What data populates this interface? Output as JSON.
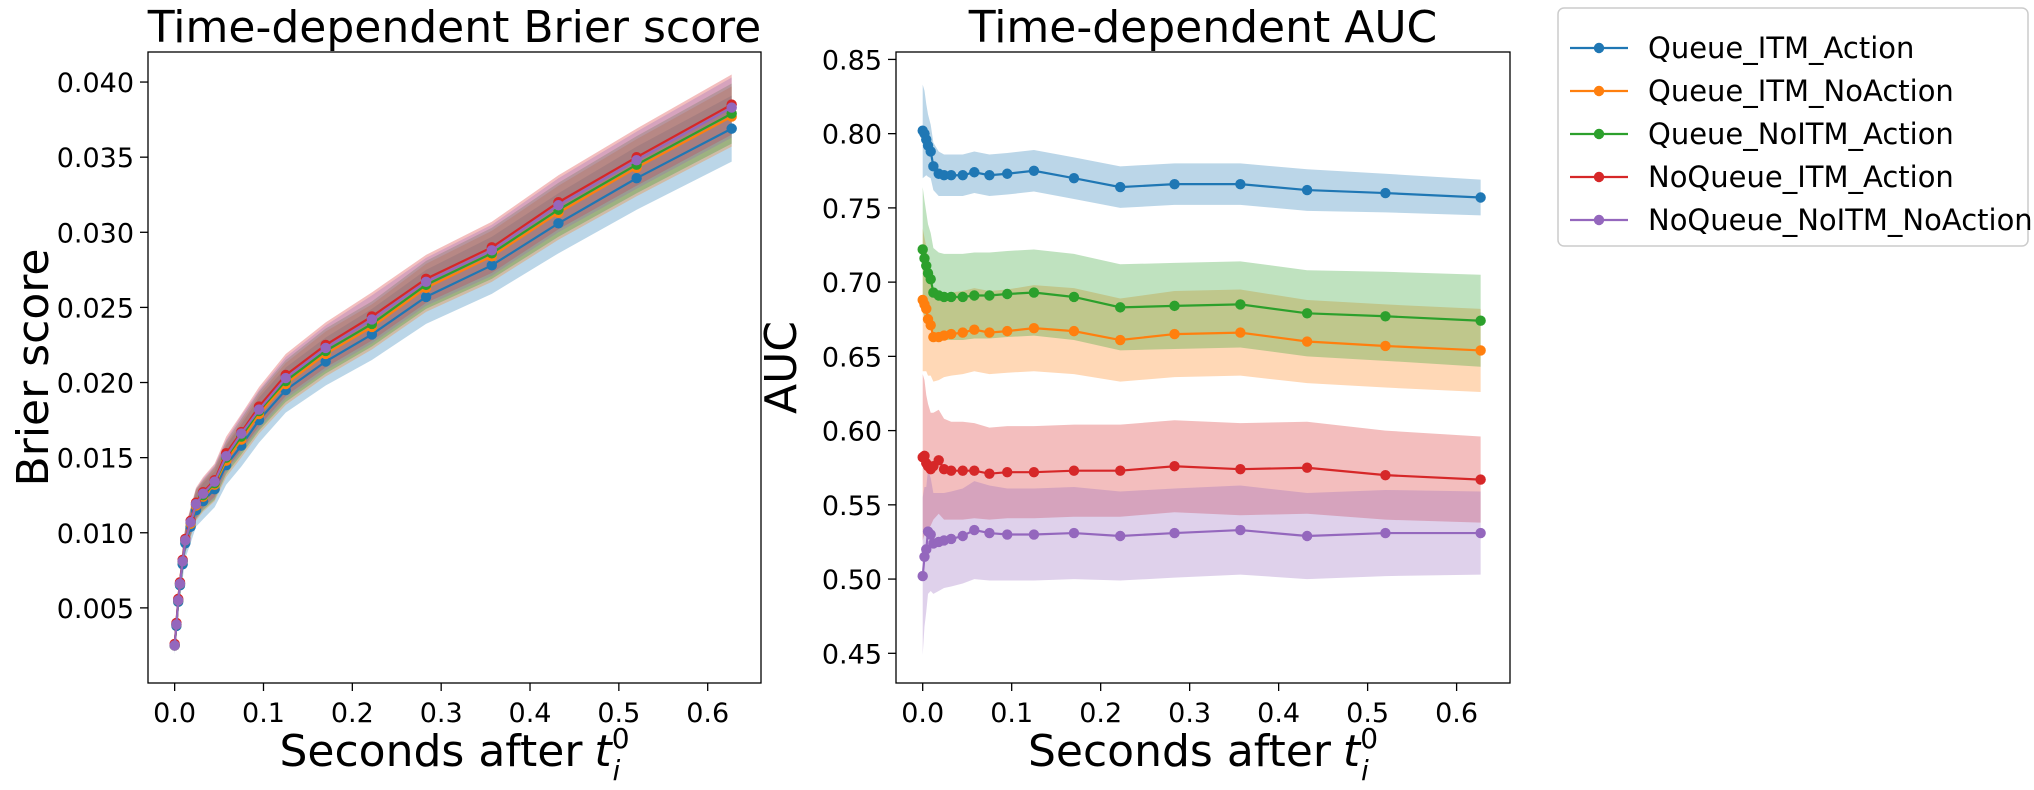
{
  "figure": {
    "legend": {
      "placement": "outside-right-top",
      "entries": [
        "Queue_ITM_Action",
        "Queue_ITM_NoAction",
        "Queue_NoITM_Action",
        "NoQueue_ITM_Action",
        "NoQueue_NoITM_NoAction"
      ]
    }
  },
  "chart_data": [
    {
      "type": "line",
      "title": "Time-dependent Brier score",
      "xlabel": "Seconds after",
      "xlabel_math": {
        "base": "t",
        "sub": "i",
        "sup": "0"
      },
      "ylabel": "Brier score",
      "xlim": [
        -0.03,
        0.66
      ],
      "ylim": [
        0.0,
        0.042
      ],
      "xticks": [
        0.0,
        0.1,
        0.2,
        0.3,
        0.4,
        0.5,
        0.6
      ],
      "xtick_labels": [
        "0.0",
        "0.1",
        "0.2",
        "0.3",
        "0.4",
        "0.5",
        "0.6"
      ],
      "yticks": [
        0.005,
        0.01,
        0.015,
        0.02,
        0.025,
        0.03,
        0.035,
        0.04
      ],
      "ytick_labels": [
        "0.005",
        "0.010",
        "0.015",
        "0.020",
        "0.025",
        "0.030",
        "0.035",
        "0.040"
      ],
      "x": [
        0.0,
        0.002,
        0.004,
        0.006,
        0.009,
        0.012,
        0.018,
        0.024,
        0.032,
        0.045,
        0.058,
        0.075,
        0.095,
        0.125,
        0.17,
        0.222,
        0.283,
        0.357,
        0.432,
        0.52,
        0.627
      ],
      "series": [
        {
          "name": "Queue_ITM_Action",
          "color": "#1f77b4",
          "values": [
            0.0025,
            0.0038,
            0.0054,
            0.0065,
            0.0079,
            0.0093,
            0.0104,
            0.0115,
            0.0121,
            0.0129,
            0.0145,
            0.0158,
            0.0175,
            0.0195,
            0.0214,
            0.0232,
            0.0257,
            0.0278,
            0.0306,
            0.0336,
            0.0369
          ],
          "lower": [
            0.0019,
            0.0031,
            0.0046,
            0.0056,
            0.0069,
            0.0083,
            0.0093,
            0.0104,
            0.0109,
            0.0117,
            0.0132,
            0.0144,
            0.016,
            0.018,
            0.0198,
            0.0215,
            0.0239,
            0.0259,
            0.0286,
            0.0315,
            0.0347
          ],
          "upper": [
            0.0031,
            0.0045,
            0.0062,
            0.0074,
            0.0089,
            0.0103,
            0.0115,
            0.0126,
            0.0133,
            0.0141,
            0.0158,
            0.0172,
            0.019,
            0.021,
            0.023,
            0.0249,
            0.0275,
            0.0297,
            0.0326,
            0.0357,
            0.0391
          ]
        },
        {
          "name": "Queue_ITM_NoAction",
          "color": "#ff7f0e",
          "values": [
            0.0025,
            0.0039,
            0.0055,
            0.0066,
            0.0081,
            0.0095,
            0.0106,
            0.0118,
            0.0124,
            0.0132,
            0.0148,
            0.0162,
            0.0179,
            0.0199,
            0.0219,
            0.0237,
            0.0263,
            0.0284,
            0.0313,
            0.0343,
            0.0377
          ],
          "lower": [
            0.0021,
            0.0034,
            0.0049,
            0.0059,
            0.0073,
            0.0087,
            0.0097,
            0.0108,
            0.0114,
            0.0121,
            0.0137,
            0.015,
            0.0166,
            0.0185,
            0.0204,
            0.0222,
            0.0247,
            0.0267,
            0.0295,
            0.0324,
            0.0357
          ],
          "upper": [
            0.0029,
            0.0044,
            0.0061,
            0.0073,
            0.0089,
            0.0103,
            0.0115,
            0.0128,
            0.0134,
            0.0143,
            0.0159,
            0.0174,
            0.0192,
            0.0213,
            0.0234,
            0.0252,
            0.0279,
            0.0301,
            0.0331,
            0.0362,
            0.0397
          ]
        },
        {
          "name": "Queue_NoITM_Action",
          "color": "#2ca02c",
          "values": [
            0.0025,
            0.0039,
            0.0055,
            0.0066,
            0.0081,
            0.0095,
            0.0107,
            0.0119,
            0.0125,
            0.0133,
            0.015,
            0.0164,
            0.0181,
            0.0201,
            0.0221,
            0.0239,
            0.0265,
            0.0286,
            0.0315,
            0.0345,
            0.0379
          ],
          "lower": [
            0.0021,
            0.0034,
            0.0049,
            0.0059,
            0.0073,
            0.0087,
            0.0098,
            0.0109,
            0.0115,
            0.0122,
            0.0139,
            0.0152,
            0.0168,
            0.0187,
            0.0206,
            0.0224,
            0.0249,
            0.0269,
            0.0297,
            0.0326,
            0.0359
          ],
          "upper": [
            0.0029,
            0.0044,
            0.0061,
            0.0073,
            0.0089,
            0.0103,
            0.0116,
            0.0129,
            0.0135,
            0.0144,
            0.0161,
            0.0176,
            0.0194,
            0.0215,
            0.0236,
            0.0254,
            0.0281,
            0.0303,
            0.0333,
            0.0364,
            0.0399
          ]
        },
        {
          "name": "NoQueue_ITM_Action",
          "color": "#d62728",
          "values": [
            0.0026,
            0.004,
            0.0056,
            0.0067,
            0.0082,
            0.0096,
            0.0108,
            0.012,
            0.0127,
            0.0135,
            0.0153,
            0.0167,
            0.0184,
            0.0205,
            0.0225,
            0.0244,
            0.0269,
            0.029,
            0.032,
            0.035,
            0.0385
          ],
          "lower": [
            0.0022,
            0.0035,
            0.005,
            0.006,
            0.0074,
            0.0088,
            0.0099,
            0.011,
            0.0117,
            0.0124,
            0.0142,
            0.0155,
            0.0171,
            0.0191,
            0.021,
            0.0228,
            0.0253,
            0.0273,
            0.0302,
            0.0331,
            0.0365
          ],
          "upper": [
            0.003,
            0.0045,
            0.0062,
            0.0074,
            0.009,
            0.0104,
            0.0117,
            0.013,
            0.0137,
            0.0146,
            0.0164,
            0.0179,
            0.0197,
            0.0219,
            0.024,
            0.026,
            0.0285,
            0.0307,
            0.0338,
            0.0369,
            0.0405
          ]
        },
        {
          "name": "NoQueue_NoITM_NoAction",
          "color": "#9467bd",
          "values": [
            0.0025,
            0.0039,
            0.0055,
            0.0066,
            0.0081,
            0.0095,
            0.0107,
            0.0119,
            0.0126,
            0.0134,
            0.0151,
            0.0166,
            0.0182,
            0.0203,
            0.0223,
            0.0242,
            0.0267,
            0.0288,
            0.0318,
            0.0348,
            0.0383
          ],
          "lower": [
            0.0021,
            0.0034,
            0.0049,
            0.0059,
            0.0073,
            0.0087,
            0.0098,
            0.0109,
            0.0116,
            0.0123,
            0.014,
            0.0154,
            0.0169,
            0.0189,
            0.0208,
            0.0226,
            0.0251,
            0.0271,
            0.03,
            0.0329,
            0.0363
          ],
          "upper": [
            0.0029,
            0.0044,
            0.0061,
            0.0073,
            0.0089,
            0.0103,
            0.0116,
            0.0129,
            0.0136,
            0.0145,
            0.0162,
            0.0178,
            0.0195,
            0.0217,
            0.0238,
            0.0258,
            0.0283,
            0.0305,
            0.0336,
            0.0367,
            0.0403
          ]
        }
      ]
    },
    {
      "type": "line",
      "title": "Time-dependent AUC",
      "xlabel": "Seconds after",
      "xlabel_math": {
        "base": "t",
        "sub": "i",
        "sup": "0"
      },
      "ylabel": "AUC",
      "xlim": [
        -0.03,
        0.66
      ],
      "ylim": [
        0.43,
        0.855
      ],
      "xticks": [
        0.0,
        0.1,
        0.2,
        0.3,
        0.4,
        0.5,
        0.6
      ],
      "xtick_labels": [
        "0.0",
        "0.1",
        "0.2",
        "0.3",
        "0.4",
        "0.5",
        "0.6"
      ],
      "yticks": [
        0.45,
        0.5,
        0.55,
        0.6,
        0.65,
        0.7,
        0.75,
        0.8,
        0.85
      ],
      "ytick_labels": [
        "0.45",
        "0.50",
        "0.55",
        "0.60",
        "0.65",
        "0.70",
        "0.75",
        "0.80",
        "0.85"
      ],
      "x": [
        0.0,
        0.002,
        0.004,
        0.006,
        0.009,
        0.012,
        0.018,
        0.024,
        0.032,
        0.045,
        0.058,
        0.075,
        0.095,
        0.125,
        0.17,
        0.222,
        0.283,
        0.357,
        0.432,
        0.52,
        0.627
      ],
      "series": [
        {
          "name": "Queue_ITM_Action",
          "color": "#1f77b4",
          "values": [
            0.802,
            0.8,
            0.796,
            0.792,
            0.788,
            0.778,
            0.773,
            0.772,
            0.772,
            0.772,
            0.774,
            0.772,
            0.773,
            0.775,
            0.77,
            0.764,
            0.766,
            0.766,
            0.762,
            0.76,
            0.757
          ],
          "lower": [
            0.77,
            0.771,
            0.772,
            0.771,
            0.77,
            0.762,
            0.758,
            0.758,
            0.758,
            0.758,
            0.76,
            0.758,
            0.759,
            0.761,
            0.756,
            0.75,
            0.752,
            0.752,
            0.748,
            0.747,
            0.745
          ],
          "upper": [
            0.833,
            0.829,
            0.82,
            0.813,
            0.806,
            0.794,
            0.788,
            0.786,
            0.786,
            0.786,
            0.788,
            0.786,
            0.787,
            0.789,
            0.784,
            0.778,
            0.78,
            0.78,
            0.776,
            0.773,
            0.769
          ]
        },
        {
          "name": "Queue_ITM_NoAction",
          "color": "#ff7f0e",
          "values": [
            0.688,
            0.685,
            0.682,
            0.675,
            0.671,
            0.663,
            0.663,
            0.664,
            0.665,
            0.666,
            0.668,
            0.666,
            0.667,
            0.669,
            0.667,
            0.661,
            0.665,
            0.666,
            0.66,
            0.657,
            0.654
          ],
          "lower": [
            0.64,
            0.64,
            0.64,
            0.637,
            0.637,
            0.633,
            0.634,
            0.636,
            0.637,
            0.638,
            0.64,
            0.638,
            0.639,
            0.64,
            0.638,
            0.633,
            0.636,
            0.637,
            0.632,
            0.629,
            0.626
          ],
          "upper": [
            0.736,
            0.73,
            0.724,
            0.713,
            0.705,
            0.693,
            0.692,
            0.692,
            0.693,
            0.694,
            0.696,
            0.694,
            0.695,
            0.698,
            0.696,
            0.689,
            0.694,
            0.695,
            0.688,
            0.685,
            0.682
          ]
        },
        {
          "name": "Queue_NoITM_Action",
          "color": "#2ca02c",
          "values": [
            0.722,
            0.716,
            0.711,
            0.706,
            0.702,
            0.693,
            0.691,
            0.69,
            0.69,
            0.69,
            0.691,
            0.691,
            0.692,
            0.693,
            0.69,
            0.683,
            0.684,
            0.685,
            0.679,
            0.677,
            0.674
          ],
          "lower": [
            0.68,
            0.677,
            0.675,
            0.673,
            0.671,
            0.663,
            0.662,
            0.661,
            0.661,
            0.661,
            0.662,
            0.662,
            0.663,
            0.664,
            0.661,
            0.654,
            0.655,
            0.656,
            0.65,
            0.647,
            0.643
          ],
          "upper": [
            0.764,
            0.755,
            0.747,
            0.739,
            0.733,
            0.723,
            0.72,
            0.719,
            0.719,
            0.719,
            0.72,
            0.72,
            0.721,
            0.722,
            0.719,
            0.712,
            0.713,
            0.714,
            0.708,
            0.707,
            0.705
          ]
        },
        {
          "name": "NoQueue_ITM_Action",
          "color": "#d62728",
          "values": [
            0.582,
            0.583,
            0.578,
            0.576,
            0.574,
            0.576,
            0.58,
            0.574,
            0.573,
            0.573,
            0.573,
            0.571,
            0.572,
            0.572,
            0.573,
            0.573,
            0.576,
            0.574,
            0.575,
            0.57,
            0.567
          ],
          "lower": [
            0.526,
            0.53,
            0.532,
            0.534,
            0.536,
            0.54,
            0.544,
            0.54,
            0.54,
            0.54,
            0.541,
            0.54,
            0.541,
            0.541,
            0.542,
            0.542,
            0.545,
            0.543,
            0.544,
            0.54,
            0.538
          ],
          "upper": [
            0.638,
            0.634,
            0.624,
            0.618,
            0.612,
            0.612,
            0.614,
            0.608,
            0.606,
            0.606,
            0.605,
            0.602,
            0.603,
            0.603,
            0.604,
            0.604,
            0.607,
            0.605,
            0.606,
            0.6,
            0.596
          ]
        },
        {
          "name": "NoQueue_NoITM_NoAction",
          "color": "#9467bd",
          "values": [
            0.502,
            0.515,
            0.52,
            0.532,
            0.53,
            0.524,
            0.525,
            0.526,
            0.527,
            0.529,
            0.533,
            0.531,
            0.53,
            0.53,
            0.531,
            0.529,
            0.531,
            0.533,
            0.529,
            0.531,
            0.531
          ],
          "lower": [
            0.449,
            0.468,
            0.478,
            0.49,
            0.492,
            0.49,
            0.492,
            0.494,
            0.495,
            0.497,
            0.5,
            0.499,
            0.499,
            0.499,
            0.5,
            0.499,
            0.501,
            0.503,
            0.5,
            0.502,
            0.503
          ],
          "upper": [
            0.555,
            0.562,
            0.562,
            0.574,
            0.568,
            0.558,
            0.558,
            0.558,
            0.559,
            0.561,
            0.566,
            0.563,
            0.561,
            0.561,
            0.562,
            0.559,
            0.561,
            0.563,
            0.558,
            0.56,
            0.559
          ]
        }
      ]
    }
  ]
}
